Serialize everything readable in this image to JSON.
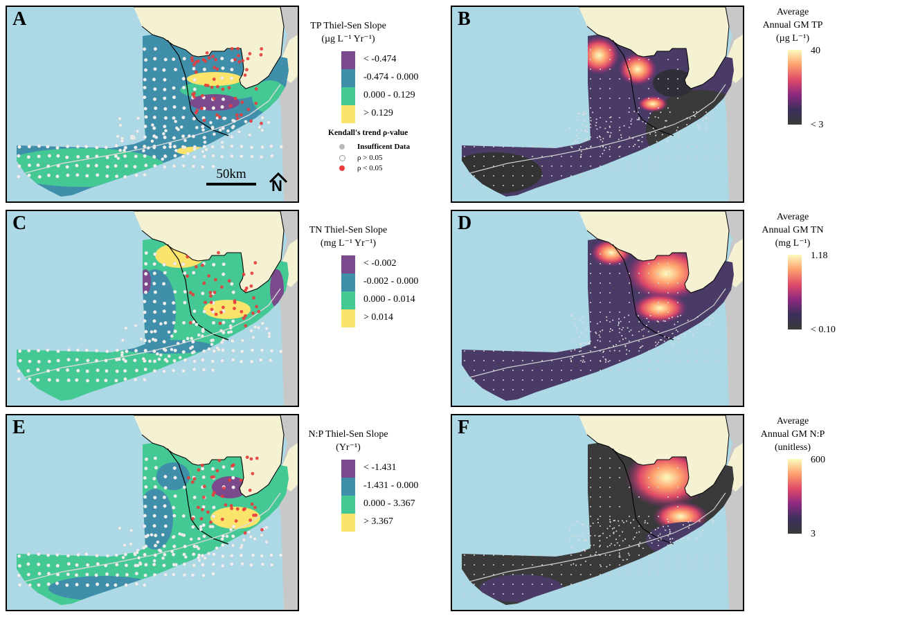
{
  "panels": [
    {
      "id": "A",
      "label": "A",
      "kind": "slope",
      "theme": "tp"
    },
    {
      "id": "B",
      "label": "B",
      "kind": "gradient",
      "theme": "tp"
    },
    {
      "id": "C",
      "label": "C",
      "kind": "slope",
      "theme": "tn"
    },
    {
      "id": "D",
      "label": "D",
      "kind": "gradient",
      "theme": "tn"
    },
    {
      "id": "E",
      "label": "E",
      "kind": "slope",
      "theme": "np"
    },
    {
      "id": "F",
      "label": "F",
      "kind": "gradient",
      "theme": "np"
    }
  ],
  "scale_bar": {
    "label": "50km"
  },
  "north_arrow": {
    "label": "N"
  },
  "legends": {
    "tp_slope": {
      "title1": "TP Thiel-Sen Slope",
      "title2": "(µg L⁻¹ Yr⁻¹)",
      "classes": [
        "< -0.474",
        "-0.474 -  0.000",
        "0.000 -  0.129",
        "> 0.129"
      ]
    },
    "tn_slope": {
      "title1": "TN Thiel-Sen Slope",
      "title2": "(mg L⁻¹ Yr⁻¹)",
      "classes": [
        "< -0.002",
        "-0.002 -  0.000",
        "0.000 -  0.014",
        "> 0.014"
      ]
    },
    "np_slope": {
      "title1": "N:P Thiel-Sen Slope",
      "title2": "(Yr⁻¹)",
      "classes": [
        "< -1.431",
        "-1.431 -  0.000",
        "0.000 -  3.367",
        "> 3.367"
      ]
    },
    "kendall": {
      "title": "Kendall's trend ρ-value",
      "items": [
        "Insufficent Data",
        "ρ > 0.05",
        "ρ < 0.05"
      ]
    },
    "tp_gm": {
      "title1": "Average",
      "title2": "Annual GM TP",
      "title3": "(µg L⁻¹)",
      "max": "40",
      "min": "< 3"
    },
    "tn_gm": {
      "title1": "Average",
      "title2": "Annual GM TN",
      "title3": "(mg L⁻¹)",
      "max": "1.18",
      "min": "< 0.10"
    },
    "np_gm": {
      "title1": "Average",
      "title2": "Annual GM N:P",
      "title3": "(unitless)",
      "max": "600",
      "min": "3"
    }
  },
  "colors": {
    "water": "#add8e6",
    "land": "#f5f2d4",
    "land_grey": "#c8c8c8",
    "slope_classes": [
      "#7b4a8c",
      "#3f8fab",
      "#45c994",
      "#fbe46b"
    ],
    "gradient": [
      "#fcfdbf",
      "#fe9f6d",
      "#de4968",
      "#8c2981",
      "#3b2f5a",
      "#3a3a3a"
    ],
    "significant": "#e83b3b",
    "nonsig": "#f0f0f0",
    "insufficient": "#b8b8b8"
  }
}
